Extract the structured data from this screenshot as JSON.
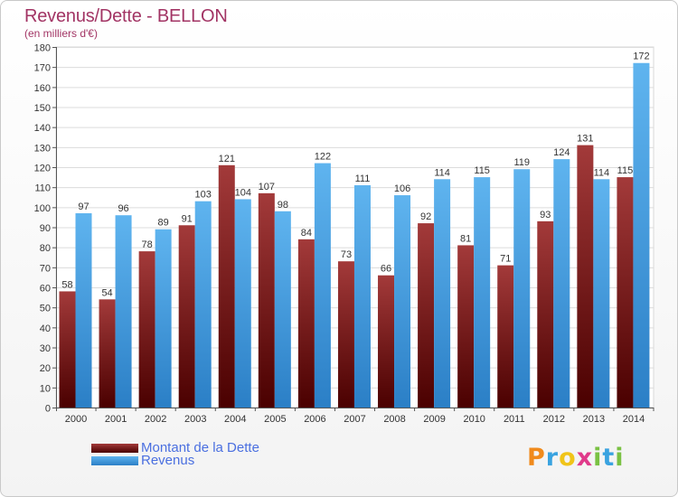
{
  "header": {
    "title": "Revenus/Dette - BELLON",
    "subtitle": "(en milliers d'€)"
  },
  "colors": {
    "dette": "#7b1f1f",
    "revenus": "#4a9fe0",
    "title": "#a23464",
    "legend_text": "#4a6fe0"
  },
  "chart_data": {
    "type": "bar",
    "categories": [
      "2000",
      "2001",
      "2002",
      "2003",
      "2004",
      "2005",
      "2006",
      "2007",
      "2008",
      "2009",
      "2010",
      "2011",
      "2012",
      "2013",
      "2014"
    ],
    "series": [
      {
        "name": "Montant de la Dette",
        "values": [
          58,
          54,
          78,
          91,
          121,
          107,
          84,
          73,
          66,
          92,
          81,
          71,
          93,
          131,
          115
        ]
      },
      {
        "name": "Revenus",
        "values": [
          97,
          96,
          89,
          103,
          104,
          98,
          122,
          111,
          106,
          114,
          115,
          119,
          124,
          114,
          172
        ]
      }
    ],
    "ylim": [
      0,
      180
    ],
    "ytick_step": 10,
    "grid": true,
    "legend_position": "bottom-left"
  },
  "legend": {
    "items": [
      {
        "label": "Montant de la Dette"
      },
      {
        "label": "Revenus"
      }
    ]
  },
  "logo": {
    "letters": [
      "P",
      "r",
      "o",
      "x",
      "i",
      "t",
      "i"
    ]
  }
}
